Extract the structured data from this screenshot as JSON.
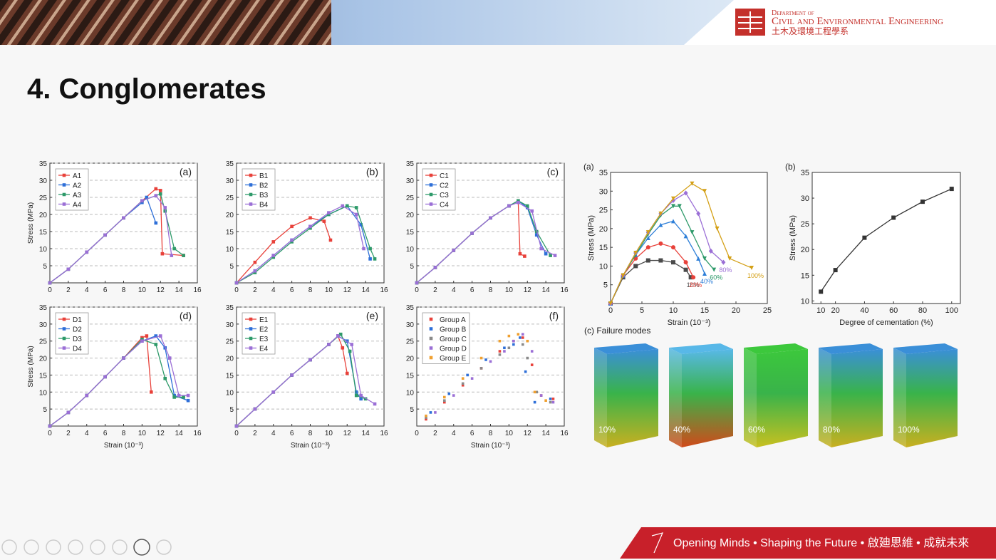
{
  "header": {
    "dept_line1": "Department of",
    "dept_line2": "Civil and Environmental Engineering",
    "dept_line3": "土木及環境工程學系"
  },
  "slide_title": "4. Conglomerates",
  "charts": [
    {
      "type": "line",
      "panel": "(a)",
      "ylabel": "Stress (MPa)",
      "xlim": [
        0,
        16
      ],
      "xticks": [
        0,
        2,
        4,
        6,
        8,
        10,
        12,
        14,
        16
      ],
      "ylim": [
        0,
        35
      ],
      "yticks": [
        5,
        10,
        15,
        20,
        25,
        30,
        35
      ],
      "grid": true,
      "legend": "upper left",
      "series": [
        {
          "name": "A1",
          "color": "#e8413a",
          "marker": "square",
          "x": [
            0,
            2,
            4,
            6,
            8,
            10,
            11.5,
            12,
            12.2,
            14.5
          ],
          "values": [
            0,
            4,
            9,
            14,
            19,
            24,
            27.5,
            27,
            8.5,
            8
          ]
        },
        {
          "name": "A2",
          "color": "#2e6fd8",
          "marker": "square",
          "x": [
            0,
            2,
            4,
            6,
            8,
            10,
            10.5,
            11.5
          ],
          "values": [
            0,
            4,
            9,
            14,
            19,
            23.5,
            25,
            17.5
          ]
        },
        {
          "name": "A3",
          "color": "#2e9a6a",
          "marker": "square",
          "x": [
            0,
            2,
            4,
            6,
            8,
            10,
            12,
            12.5,
            13.5,
            14.5
          ],
          "values": [
            0,
            4,
            9,
            14,
            19,
            24,
            26,
            21,
            10,
            8
          ]
        },
        {
          "name": "A4",
          "color": "#9b6fd6",
          "marker": "square",
          "x": [
            0,
            2,
            4,
            6,
            8,
            10,
            11.5,
            12.5,
            13.2
          ],
          "values": [
            0,
            4,
            9,
            14,
            19,
            24,
            25.5,
            22,
            8
          ]
        }
      ]
    },
    {
      "type": "line",
      "panel": "(b)",
      "xlim": [
        0,
        16
      ],
      "xticks": [
        0,
        2,
        4,
        6,
        8,
        10,
        12,
        14,
        16
      ],
      "ylim": [
        0,
        35
      ],
      "yticks": [
        5,
        10,
        15,
        20,
        25,
        30,
        35
      ],
      "grid": true,
      "legend": "upper left",
      "series": [
        {
          "name": "B1",
          "color": "#e8413a",
          "marker": "square",
          "x": [
            0,
            2,
            4,
            6,
            8,
            9.5,
            10.2
          ],
          "values": [
            0,
            6,
            12,
            16.5,
            19,
            18,
            12.5
          ]
        },
        {
          "name": "B2",
          "color": "#2e6fd8",
          "marker": "square",
          "x": [
            0,
            2,
            4,
            6,
            8,
            10,
            12,
            13.5,
            14.5
          ],
          "values": [
            0,
            3.5,
            8,
            12.5,
            16.5,
            20,
            22.5,
            17,
            7
          ]
        },
        {
          "name": "B3",
          "color": "#2e9a6a",
          "marker": "square",
          "x": [
            0,
            2,
            4,
            6,
            8,
            10,
            12,
            13,
            14.5,
            15
          ],
          "values": [
            0,
            3,
            7.5,
            12,
            16,
            20,
            22.5,
            22,
            10,
            7
          ]
        },
        {
          "name": "B4",
          "color": "#9b6fd6",
          "marker": "square",
          "x": [
            0,
            2,
            4,
            6,
            8,
            10,
            11.5,
            13,
            13.8
          ],
          "values": [
            0,
            3.5,
            8,
            12.5,
            16.5,
            20.5,
            22.5,
            20,
            10
          ]
        }
      ]
    },
    {
      "type": "line",
      "panel": "(c)",
      "xlim": [
        0,
        16
      ],
      "xticks": [
        0,
        2,
        4,
        6,
        8,
        10,
        12,
        14,
        16
      ],
      "ylim": [
        0,
        35
      ],
      "yticks": [
        5,
        10,
        15,
        20,
        25,
        30,
        35
      ],
      "grid": true,
      "legend": "upper left",
      "series": [
        {
          "name": "C1",
          "color": "#e8413a",
          "marker": "square",
          "x": [
            0,
            2,
            4,
            6,
            8,
            10,
            11,
            11.2,
            11.7
          ],
          "values": [
            0,
            4.5,
            9.5,
            14.5,
            19,
            22.5,
            24,
            8.5,
            7.8
          ]
        },
        {
          "name": "C2",
          "color": "#2e6fd8",
          "marker": "square",
          "x": [
            0,
            2,
            4,
            6,
            8,
            10,
            11,
            12,
            13,
            14
          ],
          "values": [
            0,
            4.5,
            9.5,
            14.5,
            19,
            22.5,
            24,
            22,
            14,
            8.5
          ]
        },
        {
          "name": "C3",
          "color": "#2e9a6a",
          "marker": "square",
          "x": [
            0,
            2,
            4,
            6,
            8,
            10,
            11,
            12,
            13,
            14.5
          ],
          "values": [
            0,
            4.5,
            9.5,
            14.5,
            19,
            22.5,
            24,
            22.5,
            15,
            8
          ]
        },
        {
          "name": "C4",
          "color": "#9b6fd6",
          "marker": "square",
          "x": [
            0,
            2,
            4,
            6,
            8,
            10,
            11,
            12.5,
            13.5,
            15
          ],
          "values": [
            0,
            4.5,
            9.5,
            14.5,
            19,
            22.5,
            23.5,
            21,
            10,
            8
          ]
        }
      ]
    },
    {
      "type": "line",
      "panel": "(d)",
      "xlabel": "Strain (10⁻³)",
      "ylabel": "Stress (MPa)",
      "xlim": [
        0,
        16
      ],
      "xticks": [
        0,
        2,
        4,
        6,
        8,
        10,
        12,
        14,
        16
      ],
      "ylim": [
        0,
        35
      ],
      "yticks": [
        5,
        10,
        15,
        20,
        25,
        30,
        35
      ],
      "grid": true,
      "legend": "upper left",
      "series": [
        {
          "name": "D1",
          "color": "#e8413a",
          "marker": "square",
          "x": [
            0,
            2,
            4,
            6,
            8,
            10,
            10.5,
            11
          ],
          "values": [
            0,
            4,
            9,
            14.5,
            20,
            26,
            26.5,
            10
          ]
        },
        {
          "name": "D2",
          "color": "#2e6fd8",
          "marker": "square",
          "x": [
            0,
            2,
            4,
            6,
            8,
            10,
            11.5,
            12.5,
            13.5,
            15
          ],
          "values": [
            0,
            4,
            9,
            14.5,
            20,
            25,
            26.5,
            23,
            9,
            7.5
          ]
        },
        {
          "name": "D3",
          "color": "#2e9a6a",
          "marker": "square",
          "x": [
            0,
            2,
            4,
            6,
            8,
            10,
            11.5,
            12.5,
            13.5,
            14.5
          ],
          "values": [
            0,
            4,
            9,
            14.5,
            20,
            25.5,
            24,
            14,
            8.5,
            8.5
          ]
        },
        {
          "name": "D4",
          "color": "#9b6fd6",
          "marker": "square",
          "x": [
            0,
            2,
            4,
            6,
            8,
            10,
            12,
            13,
            14,
            15
          ],
          "values": [
            0,
            4,
            9,
            14.5,
            20,
            25,
            26.5,
            20,
            9,
            9
          ]
        }
      ]
    },
    {
      "type": "line",
      "panel": "(e)",
      "xlabel": "Strain (10⁻³)",
      "xlim": [
        0,
        16
      ],
      "xticks": [
        0,
        2,
        4,
        6,
        8,
        10,
        12,
        14,
        16
      ],
      "ylim": [
        0,
        35
      ],
      "yticks": [
        5,
        10,
        15,
        20,
        25,
        30,
        35
      ],
      "grid": true,
      "legend": "upper left",
      "series": [
        {
          "name": "E1",
          "color": "#e8413a",
          "marker": "square",
          "x": [
            0,
            2,
            4,
            6,
            8,
            10,
            11,
            11.5,
            12
          ],
          "values": [
            0,
            5,
            10,
            15,
            19.5,
            24,
            26.5,
            23,
            15.5
          ]
        },
        {
          "name": "E2",
          "color": "#2e6fd8",
          "marker": "square",
          "x": [
            0,
            2,
            4,
            6,
            8,
            10,
            11,
            12,
            13,
            13.5
          ],
          "values": [
            0,
            5,
            10,
            15,
            19.5,
            24,
            26.5,
            25,
            10,
            8
          ]
        },
        {
          "name": "E3",
          "color": "#2e9a6a",
          "marker": "square",
          "x": [
            0,
            2,
            4,
            6,
            8,
            10,
            11.3,
            12.3,
            13,
            14
          ],
          "values": [
            0,
            5,
            10,
            15,
            19.5,
            24,
            27,
            22,
            9,
            8
          ]
        },
        {
          "name": "E4",
          "color": "#9b6fd6",
          "marker": "square",
          "x": [
            0,
            2,
            4,
            6,
            8,
            10,
            11,
            12.5,
            13.5,
            15
          ],
          "values": [
            0,
            5,
            10,
            15,
            19.5,
            24,
            26.5,
            24,
            9,
            6.5
          ]
        }
      ]
    },
    {
      "type": "scatter",
      "panel": "(f)",
      "xlabel": "Strain (10⁻³)",
      "xlim": [
        0,
        16
      ],
      "xticks": [
        0,
        2,
        4,
        6,
        8,
        10,
        12,
        14,
        16
      ],
      "ylim": [
        0,
        35
      ],
      "yticks": [
        5,
        10,
        15,
        20,
        25,
        30,
        35
      ],
      "grid": true,
      "legend": "upper left",
      "series": [
        {
          "name": "Group A",
          "color": "#e8413a",
          "marker": "square",
          "x": [
            1,
            3,
            5,
            7,
            9,
            10.5,
            11.5,
            12.5,
            13.5,
            14.8
          ],
          "values": [
            2,
            7,
            12,
            17,
            22,
            25,
            26,
            18,
            9,
            8
          ]
        },
        {
          "name": "Group B",
          "color": "#2e6fd8",
          "marker": "square",
          "x": [
            1.5,
            3.5,
            5.5,
            7.5,
            9.5,
            10.5,
            11.2,
            11.8,
            12.8,
            14.5
          ],
          "values": [
            4,
            9.5,
            15,
            19.5,
            23,
            24,
            26,
            16,
            7,
            8
          ]
        },
        {
          "name": "Group C",
          "color": "#8a8a8a",
          "marker": "square",
          "x": [
            1,
            3,
            5,
            7,
            9,
            10,
            11.5,
            12,
            13,
            14.5
          ],
          "values": [
            2.5,
            7.5,
            12.5,
            17,
            21,
            23,
            24,
            20,
            10,
            7
          ]
        },
        {
          "name": "Group D",
          "color": "#9b6fd6",
          "marker": "square",
          "x": [
            2,
            4,
            6,
            8,
            9.5,
            10.5,
            11.5,
            12.5,
            13.5,
            14.8
          ],
          "values": [
            4,
            9,
            14,
            19,
            22,
            25,
            27,
            22,
            9,
            7
          ]
        },
        {
          "name": "Group E",
          "color": "#f0a030",
          "marker": "square",
          "x": [
            1,
            3,
            5,
            7,
            9,
            10,
            11,
            12,
            12.8,
            14
          ],
          "values": [
            3,
            8.5,
            14,
            20,
            25,
            26.5,
            27,
            25,
            10,
            7.5
          ]
        }
      ]
    },
    {
      "type": "line",
      "panel": "(a)",
      "xlabel": "Strain (10⁻³)",
      "ylabel": "Stress (MPa)",
      "xlim": [
        0,
        25
      ],
      "xticks": [
        0,
        5,
        10,
        15,
        20,
        25
      ],
      "ylim": [
        0,
        35
      ],
      "yticks": [
        5,
        10,
        15,
        20,
        25,
        30,
        35
      ],
      "grid": false,
      "legend": "inline",
      "series": [
        {
          "name": "10%",
          "color": "#4a4a4a",
          "marker": "square",
          "x": [
            0,
            2,
            4,
            6,
            8,
            10,
            12,
            12.8
          ],
          "values": [
            0,
            7,
            10,
            11.5,
            11.5,
            11,
            9,
            7
          ]
        },
        {
          "name": "20%",
          "color": "#e8413a",
          "marker": "circle",
          "x": [
            0,
            2,
            4,
            6,
            8,
            10,
            12,
            13.2
          ],
          "values": [
            0,
            7.5,
            12,
            15,
            16,
            15,
            11,
            7
          ]
        },
        {
          "name": "40%",
          "color": "#2e7fd8",
          "marker": "triangle",
          "x": [
            0,
            2,
            4,
            6,
            8,
            10,
            12,
            14,
            15
          ],
          "values": [
            0,
            7.5,
            13,
            17.5,
            21,
            22,
            18,
            12,
            8
          ]
        },
        {
          "name": "60%",
          "color": "#2e9a6a",
          "marker": "tri-down",
          "x": [
            0,
            2,
            4,
            6,
            8,
            10,
            11,
            13,
            15,
            16.5
          ],
          "values": [
            0,
            7.5,
            13,
            18.5,
            23.5,
            26,
            26,
            19,
            12,
            9
          ]
        },
        {
          "name": "80%",
          "color": "#9b6fd6",
          "marker": "diamond",
          "x": [
            0,
            2,
            4,
            6,
            8,
            10,
            12,
            14,
            16,
            18
          ],
          "values": [
            0,
            7.5,
            13.5,
            19,
            24,
            27.5,
            29.5,
            24,
            14,
            11
          ]
        },
        {
          "name": "100%",
          "color": "#d4a017",
          "marker": "tri-down",
          "x": [
            0,
            2,
            4,
            6,
            8,
            10,
            13,
            15,
            17,
            19,
            22.5
          ],
          "values": [
            0,
            7.5,
            13.5,
            19,
            24,
            28,
            32,
            30,
            20,
            12,
            9.5
          ]
        }
      ]
    },
    {
      "type": "line",
      "panel": "(b)",
      "xlabel": "Degree of cementation (%)",
      "ylabel": "Stress (MPa)",
      "xlim": [
        4,
        106
      ],
      "xticks": [
        10,
        20,
        40,
        60,
        80,
        100
      ],
      "ylim": [
        9.5,
        35
      ],
      "yticks": [
        10,
        15,
        20,
        25,
        30,
        35
      ],
      "grid": false,
      "series": [
        {
          "color": "#333333",
          "marker": "square",
          "x": [
            10,
            20,
            40,
            60,
            80,
            100
          ],
          "values": [
            11.8,
            16,
            22.3,
            26.2,
            29.3,
            31.8
          ]
        }
      ]
    }
  ],
  "failure_modes": {
    "title": "(c) Failure modes",
    "specimens": [
      "10%",
      "40%",
      "60%",
      "80%",
      "100%"
    ]
  },
  "footer": "Opening Minds • Shaping the Future • 啟廸思維 • 成就未來"
}
